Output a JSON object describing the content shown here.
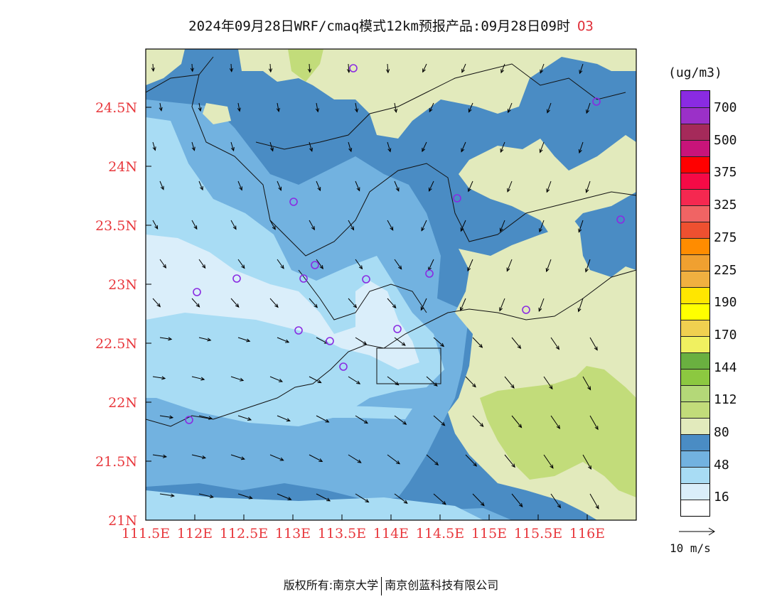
{
  "title": {
    "main": "2024年09月28日WRF/cmaq模式12km预报产品:09月28日09时",
    "species": "O3"
  },
  "map": {
    "lon_labels": [
      "111.5E",
      "112E",
      "112.5E",
      "113E",
      "113.5E",
      "114E",
      "114.5E",
      "115E",
      "115.5E",
      "116E"
    ],
    "lat_labels": [
      "21N",
      "21.5N",
      "22N",
      "22.5N",
      "23N",
      "23.5N",
      "24N",
      "24.5N"
    ],
    "axis_label_color": "#e8383d",
    "site_marker_color": "#8a2be2",
    "fill_colors": {
      "bin_16_32": "#daeefa",
      "bin_32_48": "#a8dcf4",
      "bin_48_64": "#72b2e0",
      "bin_64_80": "#4a8cc4",
      "bin_80_96": "#e2eabc",
      "bin_96_112": "#c2dc7a"
    }
  },
  "colorbar": {
    "unit": "(ug/m3)",
    "bins_top_to_bottom": [
      "#8a2be2",
      "#9b30c8",
      "#a52a5a",
      "#c8147a",
      "#ff0000",
      "#f50a46",
      "#f52850",
      "#f06464",
      "#ee5030",
      "#ff8c00",
      "#f0a030",
      "#f0b040",
      "#ffe600",
      "#ffff00",
      "#f0d050",
      "#f0f060",
      "#6ab040",
      "#8cc840",
      "#b4d878",
      "#c2dc7a",
      "#e2eabc",
      "#4a8cc4",
      "#72b2e0",
      "#a8dcf4",
      "#daeefa",
      "#ffffff"
    ],
    "labels": [
      "700",
      "500",
      "375",
      "325",
      "275",
      "225",
      "190",
      "170",
      "144",
      "112",
      "80",
      "48",
      "16"
    ]
  },
  "wind_legend": {
    "label": "10 m/s"
  },
  "footer": {
    "left": "版权所有:南京大学",
    "right": "南京创蓝科技有限公司"
  }
}
